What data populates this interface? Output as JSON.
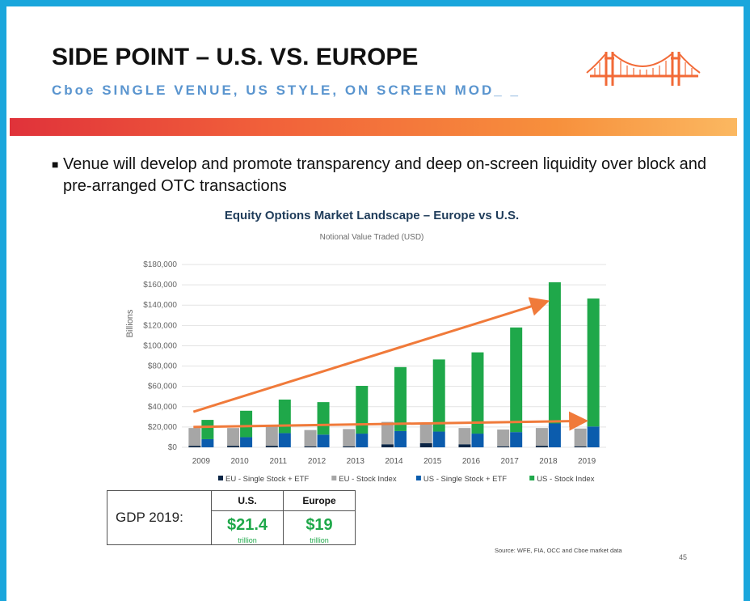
{
  "slide": {
    "title": "SIDE POINT – U.S. VS. EUROPE",
    "subtitle": "Cboe SINGLE VENUE, US STYLE, ON SCREEN MOD_ _",
    "bullet": "Venue will develop and promote transparency and deep on-screen liquidity over block and pre-arranged OTC transactions",
    "source": "Source: WFE, FIA, OCC and Cboe market data",
    "page_number": "45",
    "logo_icon": "golden-gate-bridge-icon",
    "colors": {
      "accent_band_start": "#e0323a",
      "accent_band_end": "#fbb861",
      "subtitle": "#5a95cf",
      "frame": "#1aa6dc"
    }
  },
  "gdp": {
    "label": "GDP 2019:",
    "columns": [
      {
        "header": "U.S.",
        "value": "$21.4",
        "unit": "trillion"
      },
      {
        "header": "Europe",
        "value": "$19",
        "unit": "trillion"
      }
    ]
  },
  "chart_data": {
    "type": "bar",
    "stacked": true,
    "title": "Equity Options Market Landscape – Europe vs U.S.",
    "subtitle": "Notional Value Traded (USD)",
    "ylabel": "Billions",
    "xlabel": "",
    "ylim": [
      0,
      180000
    ],
    "yticks": [
      "$0",
      "$20,000",
      "$40,000",
      "$60,000",
      "$80,000",
      "$100,000",
      "$120,000",
      "$140,000",
      "$160,000",
      "$180,000"
    ],
    "grid": true,
    "legend_position": "bottom",
    "categories": [
      "2009",
      "2010",
      "2011",
      "2012",
      "2013",
      "2014",
      "2015",
      "2016",
      "2017",
      "2018",
      "2019"
    ],
    "groups": [
      {
        "name": "Europe",
        "series": [
          {
            "name": "EU - Single Stock + ETF",
            "color": "#0b2545",
            "values": [
              1500,
              1500,
              1500,
              1000,
              1000,
              3000,
              4000,
              3000,
              1000,
              1500,
              1000
            ]
          },
          {
            "name": "EU - Stock Index",
            "color": "#a6a6a6",
            "values": [
              17500,
              17500,
              20500,
              16000,
              17000,
              22000,
              19000,
              16000,
              16500,
              17500,
              17500
            ]
          }
        ]
      },
      {
        "name": "U.S.",
        "series": [
          {
            "name": "US - Single Stock + ETF",
            "color": "#0b5cad",
            "values": [
              8000,
              10000,
              14000,
              12500,
              13500,
              16000,
              15500,
              13500,
              15000,
              23500,
              20500
            ]
          },
          {
            "name": "US - Stock Index",
            "color": "#1fa84a",
            "values": [
              19000,
              26000,
              33000,
              32000,
              47000,
              63000,
              71000,
              80000,
              103000,
              139000,
              126000
            ]
          }
        ]
      }
    ],
    "annotations": [
      {
        "type": "arrow",
        "color": "#f07a3a",
        "from": [
          "2009",
          35000
        ],
        "to": [
          "2018",
          143000
        ]
      },
      {
        "type": "arrow",
        "color": "#f07a3a",
        "from": [
          "2009",
          20000
        ],
        "to": [
          "2019",
          26000
        ]
      }
    ]
  }
}
